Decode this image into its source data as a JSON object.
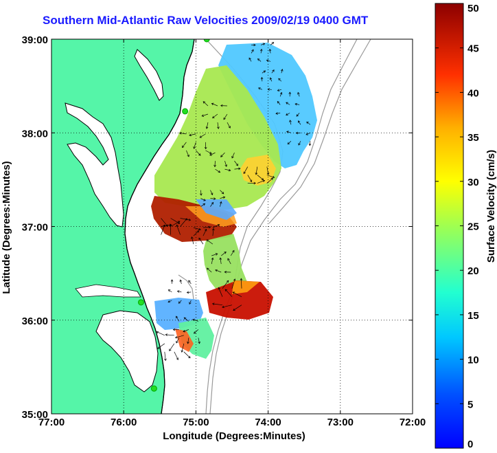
{
  "title": "Southern Mid-Atlantic Raw Velocities 2009/02/19 0400 GMT",
  "map": {
    "xlabel": "Longitude (Degrees:Minutes)",
    "ylabel": "Latitude (Degrees:Minutes)",
    "x_ticks": [
      "77:00",
      "76:00",
      "75:00",
      "74:00",
      "73:00",
      "72:00"
    ],
    "y_ticks": [
      "39:00",
      "38:00",
      "37:00",
      "36:00",
      "35:00"
    ],
    "lon_range": [
      -77,
      -72
    ],
    "lat_range": [
      35,
      39
    ],
    "grid": "dotted",
    "land_color": "#55f5a8",
    "coast_color": "#000000",
    "isobath_color": "#999999",
    "site_color": "#22dd22"
  },
  "colorbar": {
    "label": "Surface Velocity (cm/s)",
    "ticks": [
      "0",
      "5",
      "10",
      "15",
      "20",
      "25",
      "30",
      "35",
      "40",
      "45",
      "50"
    ],
    "range": [
      0,
      50
    ],
    "colormap": "jet"
  },
  "chart_data": {
    "type": "heatmap",
    "title": "Southern Mid-Atlantic Raw Velocities 2009/02/19 0400 GMT",
    "xlabel": "Longitude (Degrees:Minutes)",
    "ylabel": "Latitude (Degrees:Minutes)",
    "xlim": [
      -77,
      -72
    ],
    "ylim": [
      35,
      39
    ],
    "colorbar_label": "Surface Velocity (cm/s)",
    "clim": [
      0,
      50
    ],
    "sites": [
      {
        "lon": -74.85,
        "lat": 39.0
      },
      {
        "lon": -75.15,
        "lat": 38.23
      },
      {
        "lon": -75.76,
        "lat": 36.19
      },
      {
        "lon": -75.58,
        "lat": 35.27
      }
    ],
    "velocity_regions": [
      {
        "lon": -74.1,
        "lat": 38.85,
        "speed": 8
      },
      {
        "lon": -73.95,
        "lat": 38.55,
        "speed": 7
      },
      {
        "lon": -73.7,
        "lat": 38.3,
        "speed": 9
      },
      {
        "lon": -73.55,
        "lat": 38.0,
        "speed": 10
      },
      {
        "lon": -74.7,
        "lat": 38.2,
        "speed": 21
      },
      {
        "lon": -75.0,
        "lat": 37.9,
        "speed": 23
      },
      {
        "lon": -74.6,
        "lat": 37.7,
        "speed": 18
      },
      {
        "lon": -74.15,
        "lat": 37.55,
        "speed": 30
      },
      {
        "lon": -74.8,
        "lat": 37.3,
        "speed": 14
      },
      {
        "lon": -75.35,
        "lat": 37.0,
        "speed": 45
      },
      {
        "lon": -74.9,
        "lat": 36.9,
        "speed": 27
      },
      {
        "lon": -74.65,
        "lat": 36.6,
        "speed": 20
      },
      {
        "lon": -74.5,
        "lat": 36.25,
        "speed": 42
      },
      {
        "lon": -75.2,
        "lat": 36.3,
        "speed": 8
      },
      {
        "lon": -75.1,
        "lat": 35.9,
        "speed": 18
      },
      {
        "lon": -75.3,
        "lat": 35.75,
        "speed": 35
      }
    ]
  }
}
